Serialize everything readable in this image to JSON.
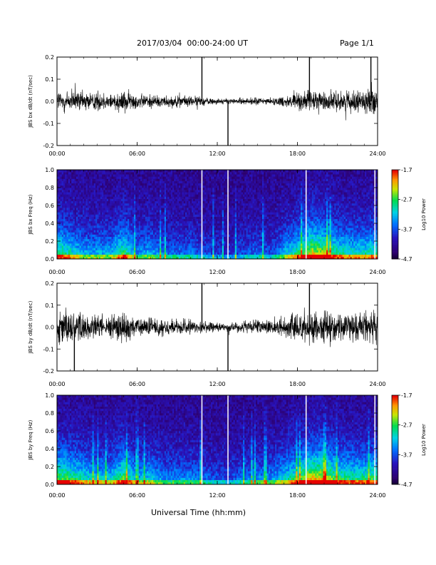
{
  "header": {
    "title": "2017/03/04  00:00-24:00 UT",
    "page": "Page 1/1"
  },
  "x_axis_label": "Universal Time (hh:mm)",
  "x_ticks": [
    "00:00",
    "06:00",
    "12:00",
    "18:00",
    "24:00"
  ],
  "colors": {
    "trace": "#000000",
    "gap_lines": "#ffffff"
  },
  "chart_data": [
    {
      "type": "line",
      "ylabel": "JBS bx dB/dt (nT/sec)",
      "xlim": [
        0,
        24
      ],
      "ylim": [
        -0.2,
        0.2
      ],
      "y_ticks": [
        "-0.2",
        "-0.1",
        "0.0",
        "0.1",
        "0.2"
      ],
      "description_of_series": "high-frequency dB/dt fluctuation, hourly peak-to-peak amplitude envelope",
      "x_hours": [
        0,
        1,
        2,
        3,
        4,
        5,
        6,
        7,
        8,
        9,
        10,
        11,
        12,
        13,
        14,
        15,
        16,
        17,
        18,
        19,
        20,
        21,
        22,
        23,
        24
      ],
      "amplitude": [
        0.09,
        0.08,
        0.07,
        0.07,
        0.06,
        0.08,
        0.05,
        0.05,
        0.04,
        0.04,
        0.04,
        0.03,
        0.02,
        0.02,
        0.02,
        0.03,
        0.02,
        0.04,
        0.06,
        0.08,
        0.07,
        0.07,
        0.07,
        0.08,
        0.09
      ],
      "spikes": [
        {
          "x": 10.85,
          "y": 0.2
        },
        {
          "x": 12.8,
          "y": -0.2
        },
        {
          "x": 18.9,
          "y": 0.2
        },
        {
          "x": 23.5,
          "y": 0.2
        }
      ]
    },
    {
      "type": "heatmap",
      "ylabel": "JBS bx Freq (Hz)",
      "xlim": [
        0,
        24
      ],
      "ylim": [
        0,
        1
      ],
      "y_ticks": [
        "0.0",
        "0.2",
        "0.4",
        "0.6",
        "0.8",
        "1.0"
      ],
      "colorbar": {
        "label": "Log10 Power",
        "min": -4.7,
        "max": -1.7,
        "ticks": [
          "-1.7",
          "-2.7",
          "-3.7",
          "-4.7"
        ]
      },
      "activity": [
        0.55,
        0.45,
        0.35,
        0.35,
        0.35,
        0.55,
        0.3,
        0.35,
        0.25,
        0.25,
        0.25,
        0.2,
        0.15,
        0.15,
        0.2,
        0.25,
        0.2,
        0.35,
        0.5,
        0.7,
        0.65,
        0.5,
        0.45,
        0.45,
        0.5
      ],
      "gaps_hours": [
        10.85,
        12.8,
        18.65,
        23.8
      ]
    },
    {
      "type": "line",
      "ylabel": "JBS by dB/dt (nT/sec)",
      "xlim": [
        0,
        24
      ],
      "ylim": [
        -0.2,
        0.2
      ],
      "y_ticks": [
        "-0.2",
        "-0.1",
        "0.0",
        "0.1",
        "0.2"
      ],
      "description_of_series": "high-frequency dB/dt fluctuation, hourly peak-to-peak amplitude envelope",
      "x_hours": [
        0,
        1,
        2,
        3,
        4,
        5,
        6,
        7,
        8,
        9,
        10,
        11,
        12,
        13,
        14,
        15,
        16,
        17,
        18,
        19,
        20,
        21,
        22,
        23,
        24
      ],
      "amplitude": [
        0.12,
        0.13,
        0.1,
        0.09,
        0.08,
        0.11,
        0.06,
        0.07,
        0.06,
        0.06,
        0.05,
        0.04,
        0.03,
        0.03,
        0.04,
        0.05,
        0.05,
        0.07,
        0.1,
        0.12,
        0.11,
        0.1,
        0.09,
        0.1,
        0.11
      ],
      "spikes": [
        {
          "x": 10.85,
          "y": 0.2
        },
        {
          "x": 12.8,
          "y": -0.2
        },
        {
          "x": 18.9,
          "y": 0.2
        },
        {
          "x": 1.3,
          "y": -0.2
        }
      ]
    },
    {
      "type": "heatmap",
      "ylabel": "JBS by Freq (Hz)",
      "xlim": [
        0,
        24
      ],
      "ylim": [
        0,
        1
      ],
      "y_ticks": [
        "0.0",
        "0.2",
        "0.4",
        "0.6",
        "0.8",
        "1.0"
      ],
      "colorbar": {
        "label": "Log10 Power",
        "min": -4.7,
        "max": -1.7,
        "ticks": [
          "-1.7",
          "-2.7",
          "-3.7",
          "-4.7"
        ]
      },
      "activity": [
        0.6,
        0.55,
        0.45,
        0.4,
        0.4,
        0.6,
        0.35,
        0.4,
        0.3,
        0.3,
        0.3,
        0.25,
        0.2,
        0.2,
        0.25,
        0.3,
        0.3,
        0.4,
        0.55,
        0.75,
        0.7,
        0.55,
        0.5,
        0.5,
        0.55
      ],
      "gaps_hours": [
        10.85,
        12.8,
        18.65,
        23.8
      ]
    }
  ]
}
